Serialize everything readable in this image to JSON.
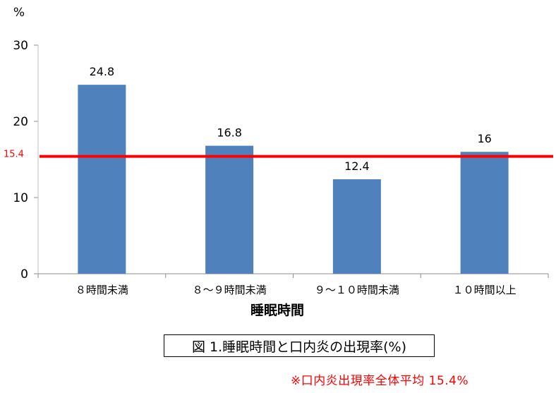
{
  "chart_data": {
    "type": "bar",
    "ylabel": "%",
    "xlabel": "睡眠時間",
    "ylim": [
      0,
      30
    ],
    "yticks": [
      0,
      10,
      20,
      30
    ],
    "categories": [
      "８時間未満",
      "８～９時間未満",
      "９～１０時間未満",
      "１０時間以上"
    ],
    "values": [
      24.8,
      16.8,
      12.4,
      16
    ],
    "data_labels": [
      "24.8",
      "16.8",
      "12.4",
      "16"
    ],
    "bar_color": "#4f81bd",
    "grid": false,
    "reference_line": {
      "value": 15.4,
      "label": "15.4",
      "color": "#ff0000"
    }
  },
  "caption": "図 1.睡眠時間と口内炎の出現率(%)",
  "footnote": "※口内炎出現率全体平均 15.4%"
}
